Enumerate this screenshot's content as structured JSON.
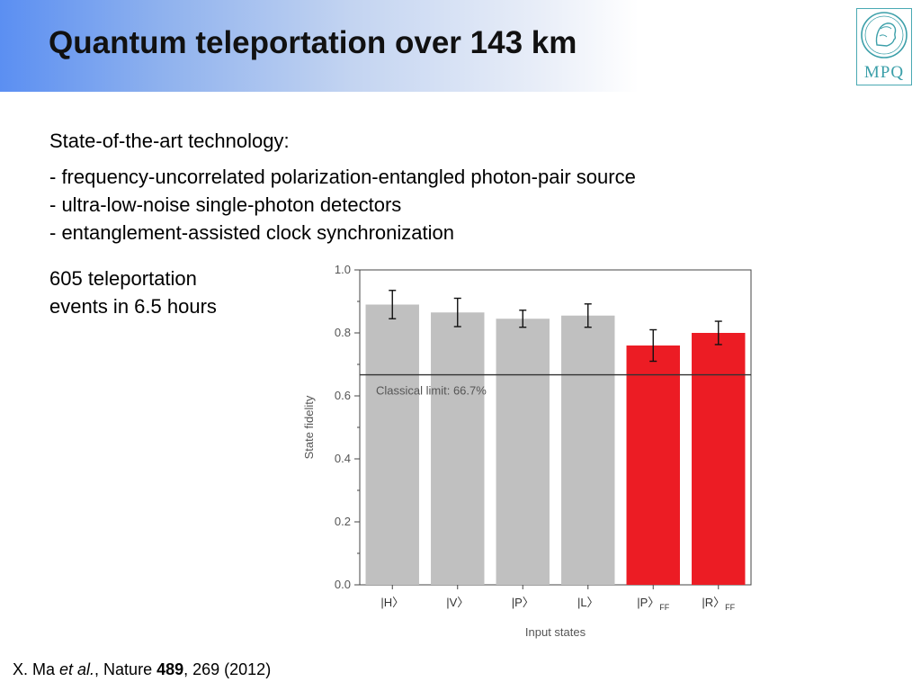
{
  "slide": {
    "title": "Quantum teleportation over 143 km",
    "intro": "State-of-the-art technology:",
    "bullets": [
      "- frequency-uncorrelated polarization-entangled photon-pair source",
      "- ultra-low-noise single-photon detectors",
      "- entanglement-assisted clock synchronization"
    ],
    "events_line1": "605 teleportation",
    "events_line2": "events in 6.5 hours",
    "logo_text": "MPQ",
    "citation": {
      "authors": "X. Ma ",
      "etal": "et al.",
      "journal": ", Nature ",
      "volume": "489",
      "rest": ", 269 (2012)"
    }
  },
  "colors": {
    "gray_bar": "#c0c0c0",
    "red_bar": "#ec1c24",
    "logo": "#3b9fa9"
  },
  "chart_data": {
    "type": "bar",
    "xlabel": "Input states",
    "ylabel": "State fidelity",
    "ylim": [
      0,
      1.0
    ],
    "yticks": [
      "0.0",
      "0.2",
      "0.4",
      "0.6",
      "0.8",
      "1.0"
    ],
    "categories": [
      "|H〉",
      "|V〉",
      "|P〉",
      "|L〉",
      "|P〉FF",
      "|R〉FF"
    ],
    "values": [
      0.89,
      0.865,
      0.845,
      0.855,
      0.76,
      0.8
    ],
    "errors": [
      0.045,
      0.045,
      0.027,
      0.037,
      0.05,
      0.037
    ],
    "bar_colors": [
      "gray",
      "gray",
      "gray",
      "gray",
      "red",
      "red"
    ],
    "reference_line": {
      "value": 0.667,
      "label": "Classical limit: 66.7%"
    }
  }
}
